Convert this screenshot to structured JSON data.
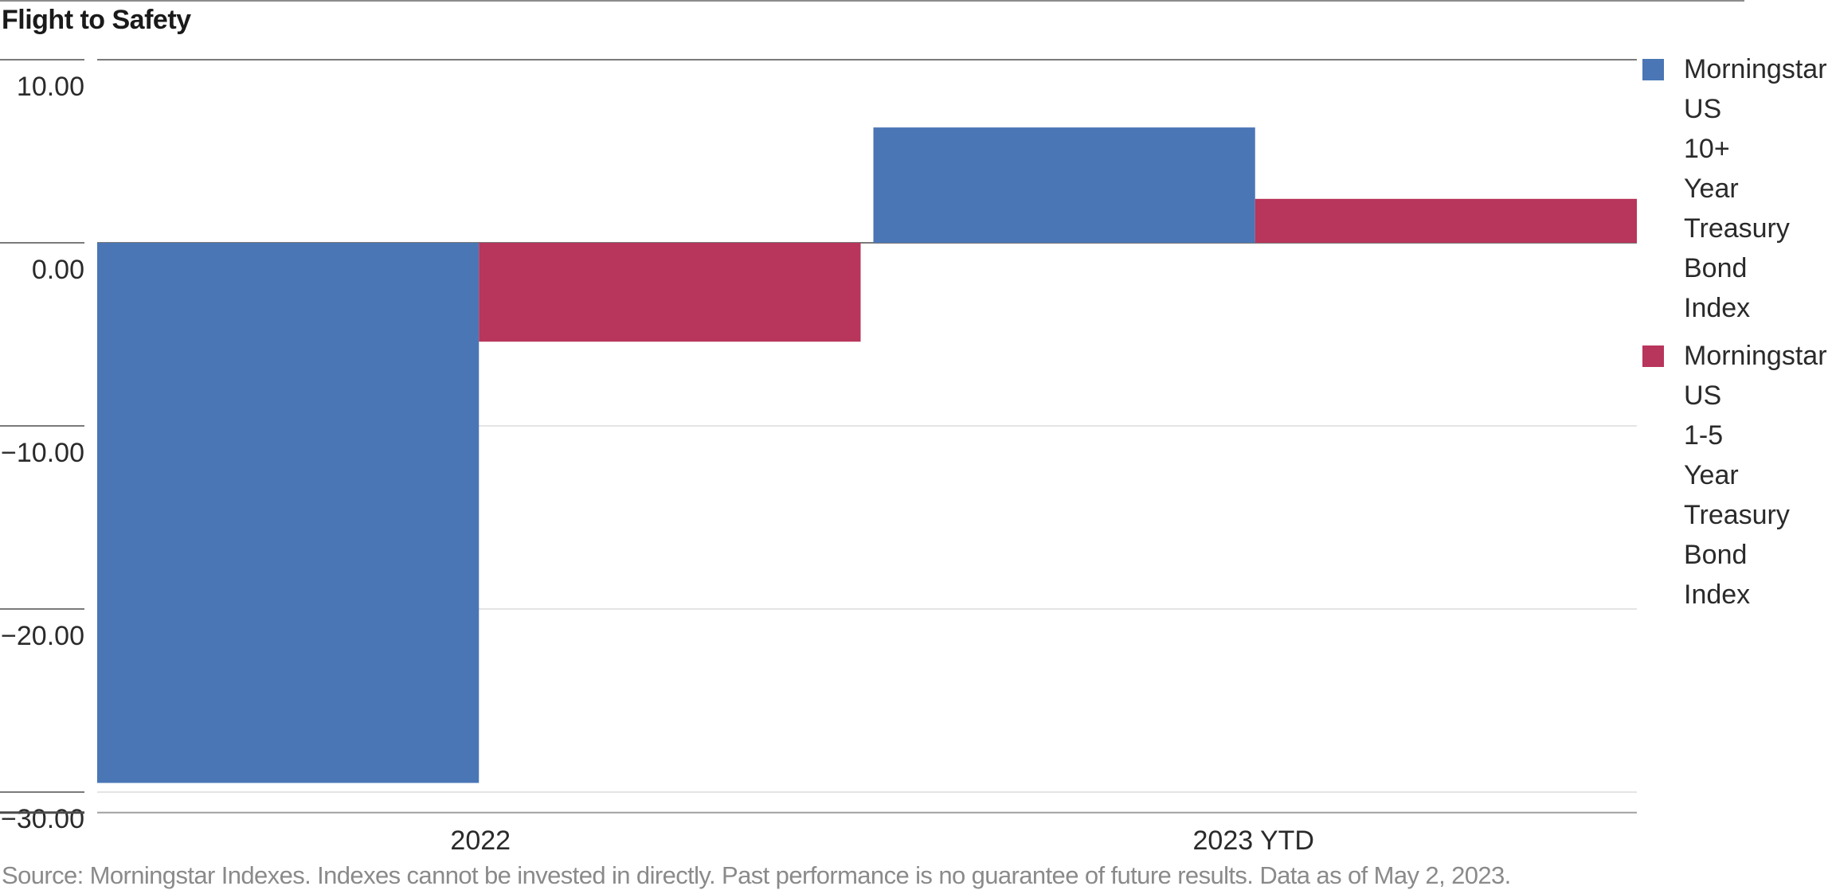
{
  "chart_data": {
    "type": "bar",
    "title": "Flight to Safety",
    "categories": [
      "2022",
      "2023 YTD"
    ],
    "series": [
      {
        "name": "Morningstar US 10+ Year Treasury Bond Index",
        "color": "#4a76b6",
        "values": [
          -29.5,
          6.3
        ]
      },
      {
        "name": "Morningstar US 1-5 Year Treasury Bond Index",
        "color": "#b8355b",
        "values": [
          -5.4,
          2.4
        ]
      }
    ],
    "ylim": [
      -30.6,
      10.0
    ],
    "yticks": [
      {
        "value": 10,
        "label": "10.00"
      },
      {
        "value": 0,
        "label": "0.00"
      },
      {
        "value": -10,
        "label": "−10.00"
      },
      {
        "value": -20,
        "label": "−20.00"
      },
      {
        "value": -30,
        "label": "−30.00"
      }
    ],
    "grid": true,
    "legend": "right",
    "xlabel": "",
    "ylabel": ""
  },
  "source": "Source: Morningstar Indexes. Indexes cannot be invested in directly. Past performance is no guarantee of future results. Data as of May 2, 2023."
}
